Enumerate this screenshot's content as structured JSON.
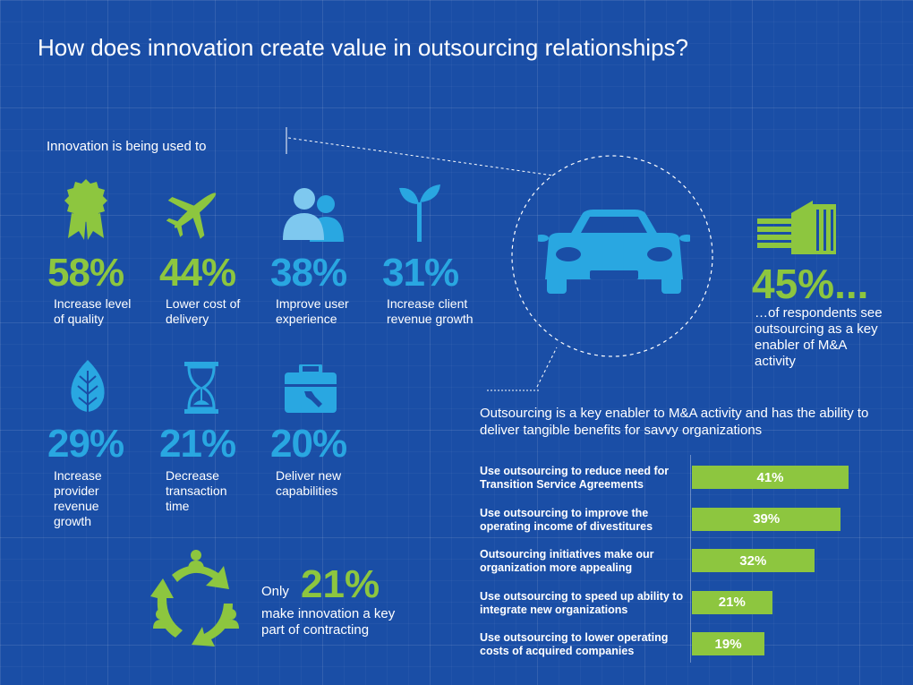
{
  "title": "How does innovation create value in outsourcing relationships?",
  "intro": "Innovation is being used to",
  "stats": [
    {
      "percent": "58%",
      "label": "Increase level of quality",
      "icon": "award-ribbon-icon",
      "color": "#8dc63f"
    },
    {
      "percent": "44%",
      "label": "Lower cost of delivery",
      "icon": "airplane-icon",
      "color": "#8dc63f"
    },
    {
      "percent": "38%",
      "label": "Improve user experience",
      "icon": "users-icon",
      "color": "#29a7e1"
    },
    {
      "percent": "31%",
      "label": "Increase client revenue growth",
      "icon": "sprout-icon",
      "color": "#29a7e1"
    },
    {
      "percent": "29%",
      "label": "Increase provider revenue growth",
      "icon": "leaf-icon",
      "color": "#29a7e1"
    },
    {
      "percent": "21%",
      "label": "Decrease transaction time",
      "icon": "hourglass-icon",
      "color": "#29a7e1"
    },
    {
      "percent": "20%",
      "label": "Deliver new capabilities",
      "icon": "toolbox-icon",
      "color": "#29a7e1"
    }
  ],
  "ma": {
    "percent": "45%...",
    "description": "…of respondents see outsourcing as a key enabler of M&A activity",
    "icon": "building-icon"
  },
  "car_icon": "car-icon",
  "bars_section": {
    "title": "Outsourcing is a key enabler to M&A activity and has the ability to deliver tangible benefits for savvy organizations",
    "color": "#8dc63f"
  },
  "chart_data": {
    "type": "bar",
    "orientation": "horizontal",
    "categories": [
      "Use outsourcing to reduce need for Transition Service Agreements",
      "Use outsourcing to improve the operating income of divestitures",
      "Outsourcing initiatives make our organization more appealing",
      "Use outsourcing to speed up ability to integrate new organizations",
      "Use outsourcing to lower operating costs of acquired companies"
    ],
    "values": [
      41,
      39,
      32,
      21,
      19
    ],
    "value_labels": [
      "41%",
      "39%",
      "32%",
      "21%",
      "19%"
    ],
    "xlim": [
      0,
      45
    ]
  },
  "contracting": {
    "prefix": "Only",
    "percent": "21%",
    "description": "make innovation a key part of contracting",
    "icon": "cycle-people-icon"
  }
}
